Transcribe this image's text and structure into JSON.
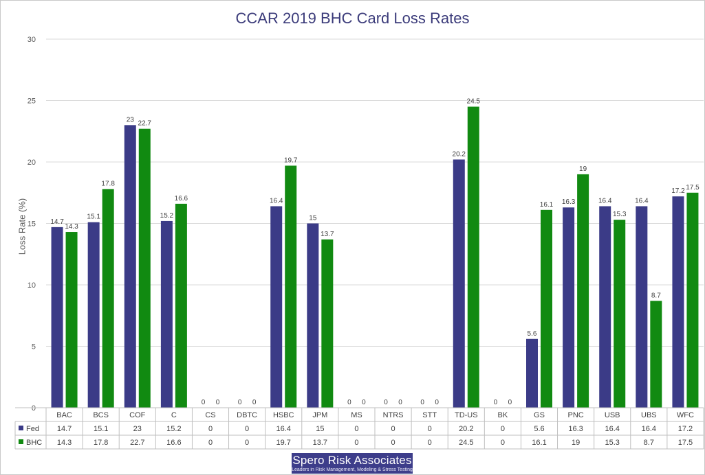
{
  "colors": {
    "fed": "#3b3b87",
    "bhc": "#118a11",
    "grid": "#d9d9d9",
    "title": "#3b3b7a"
  },
  "chart_data": {
    "type": "bar",
    "title": "CCAR 2019 BHC Card Loss Rates",
    "ylabel": "Loss Rate (%)",
    "xlabel": "",
    "ylim": [
      0,
      30
    ],
    "yticks": [
      0,
      5,
      10,
      15,
      20,
      25,
      30
    ],
    "grid": true,
    "legend": "data-table",
    "categories": [
      "BAC",
      "BCS",
      "COF",
      "C",
      "CS",
      "DBTC",
      "HSBC",
      "JPM",
      "MS",
      "NTRS",
      "STT",
      "TD-US",
      "BK",
      "GS",
      "PNC",
      "USB",
      "UBS",
      "WFC"
    ],
    "series": [
      {
        "name": "Fed",
        "values": [
          14.7,
          15.1,
          23,
          15.2,
          0,
          0,
          16.4,
          15,
          0,
          0,
          0,
          20.2,
          0,
          5.6,
          16.3,
          16.4,
          16.4,
          17.2
        ]
      },
      {
        "name": "BHC",
        "values": [
          14.3,
          17.8,
          22.7,
          16.6,
          0,
          0,
          19.7,
          13.7,
          0,
          0,
          0,
          24.5,
          0,
          16.1,
          19,
          15.3,
          8.7,
          17.5
        ]
      }
    ]
  },
  "logo": {
    "name": "Spero Risk Associates",
    "tagline": "Leaders in Risk Management, Modeling & Stress Testing"
  }
}
